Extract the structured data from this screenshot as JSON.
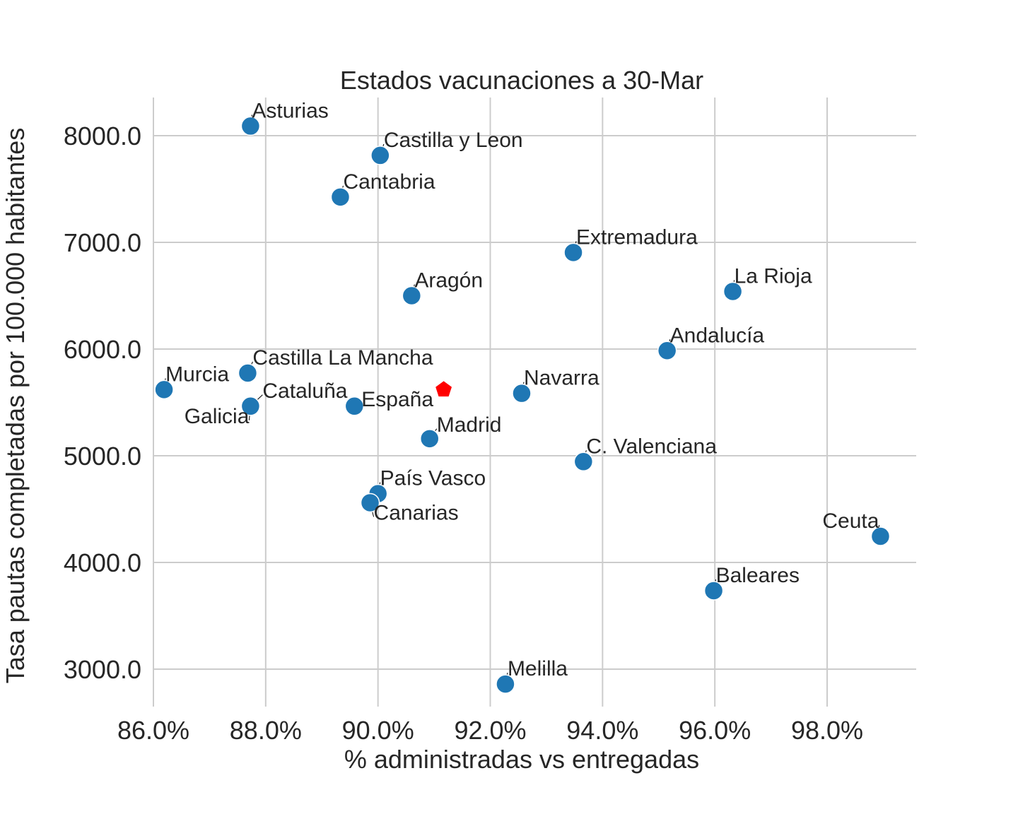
{
  "chart_data": {
    "type": "scatter",
    "title": "Estados vacunaciones a 30-Mar",
    "xlabel": "% administradas vs entregadas",
    "ylabel": "Tasa pautas completadas por 100.000 habitantes",
    "xlim": [
      0.86,
      0.994
    ],
    "ylim": [
      2650,
      8360
    ],
    "xticks": [
      {
        "value": 0.86,
        "label": "86.0%"
      },
      {
        "value": 0.88,
        "label": "88.0%"
      },
      {
        "value": 0.9,
        "label": "90.0%"
      },
      {
        "value": 0.92,
        "label": "92.0%"
      },
      {
        "value": 0.94,
        "label": "94.0%"
      },
      {
        "value": 0.96,
        "label": "96.0%"
      },
      {
        "value": 0.98,
        "label": "98.0%"
      }
    ],
    "yticks": [
      {
        "value": 3000,
        "label": "3000.0"
      },
      {
        "value": 4000,
        "label": "4000.0"
      },
      {
        "value": 5000,
        "label": "5000.0"
      },
      {
        "value": 6000,
        "label": "6000.0"
      },
      {
        "value": 7000,
        "label": "7000.0"
      },
      {
        "value": 8000,
        "label": "8000.0"
      }
    ],
    "grid": true,
    "point_color": "#1f77b4",
    "highlight_color": "#ff0000",
    "highlight": {
      "x": 0.9117,
      "y": 5620
    },
    "points": [
      {
        "name": "Asturias",
        "x": 0.8773,
        "y": 8090,
        "label_anchor": "start",
        "label_dx": 2,
        "label_dy": -12
      },
      {
        "name": "Castilla y Leon",
        "x": 0.9004,
        "y": 7815,
        "label_anchor": "start",
        "label_dx": 5,
        "label_dy": -12
      },
      {
        "name": "Cantabria",
        "x": 0.8933,
        "y": 7425,
        "label_anchor": "start",
        "label_dx": 4,
        "label_dy": -12
      },
      {
        "name": "Extremadura",
        "x": 0.9348,
        "y": 6905,
        "label_anchor": "start",
        "label_dx": 4,
        "label_dy": -12
      },
      {
        "name": "La Rioja",
        "x": 0.9632,
        "y": 6540,
        "label_anchor": "start",
        "label_dx": 2,
        "label_dy": -12
      },
      {
        "name": "Aragón",
        "x": 0.906,
        "y": 6500,
        "label_anchor": "start",
        "label_dx": 4,
        "label_dy": -12
      },
      {
        "name": "Andalucía",
        "x": 0.9515,
        "y": 5985,
        "label_anchor": "start",
        "label_dx": 4,
        "label_dy": -12
      },
      {
        "name": "Castilla La Mancha",
        "x": 0.8768,
        "y": 5775,
        "label_anchor": "start",
        "label_dx": 7,
        "label_dy": -12
      },
      {
        "name": "Murcia",
        "x": 0.8619,
        "y": 5620,
        "label_anchor": "start",
        "label_dx": 2,
        "label_dy": -12
      },
      {
        "name": "Navarra",
        "x": 0.9256,
        "y": 5585,
        "label_anchor": "start",
        "label_dx": 3,
        "label_dy": -12
      },
      {
        "name": "Cataluña",
        "x": 0.8773,
        "y": 5465,
        "label_anchor": "start",
        "label_dx": 17,
        "label_dy": -12
      },
      {
        "name": "España",
        "x": 0.8958,
        "y": 5465,
        "label_anchor": "start",
        "label_dx": 10,
        "label_dy": 0
      },
      {
        "name": "Galicia",
        "x": 0.8773,
        "y": 5465,
        "label_anchor": "end",
        "label_dx": -2,
        "label_dy": 24
      },
      {
        "name": "Madrid",
        "x": 0.9092,
        "y": 5160,
        "label_anchor": "start",
        "label_dx": 10,
        "label_dy": -10
      },
      {
        "name": "C. Valenciana",
        "x": 0.9366,
        "y": 4945,
        "label_anchor": "start",
        "label_dx": 4,
        "label_dy": -12
      },
      {
        "name": "País Vasco",
        "x": 0.9,
        "y": 4645,
        "label_anchor": "start",
        "label_dx": 3,
        "label_dy": -12
      },
      {
        "name": "Canarias",
        "x": 0.8986,
        "y": 4560,
        "label_anchor": "start",
        "label_dx": 5,
        "label_dy": 24
      },
      {
        "name": "Ceuta",
        "x": 0.9895,
        "y": 4245,
        "label_anchor": "end",
        "label_dx": -2,
        "label_dy": -12
      },
      {
        "name": "Baleares",
        "x": 0.9598,
        "y": 3735,
        "label_anchor": "start",
        "label_dx": 3,
        "label_dy": -12
      },
      {
        "name": "Melilla",
        "x": 0.9227,
        "y": 2860,
        "label_anchor": "start",
        "label_dx": 3,
        "label_dy": -12
      }
    ]
  }
}
